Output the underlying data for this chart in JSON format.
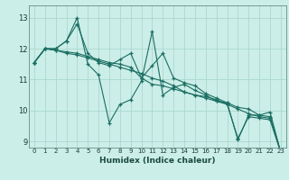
{
  "xlabel": "Humidex (Indice chaleur)",
  "bg_color": "#cceee8",
  "grid_color": "#aad8d0",
  "line_color": "#1a6e62",
  "xlim": [
    -0.5,
    23.5
  ],
  "ylim": [
    8.8,
    13.4
  ],
  "yticks": [
    9,
    10,
    11,
    12,
    13
  ],
  "xticks": [
    0,
    1,
    2,
    3,
    4,
    5,
    6,
    7,
    8,
    9,
    10,
    11,
    12,
    13,
    14,
    15,
    16,
    17,
    18,
    19,
    20,
    21,
    22,
    23
  ],
  "series": [
    [
      11.55,
      12.0,
      12.0,
      12.25,
      13.0,
      11.5,
      11.15,
      9.6,
      10.2,
      10.35,
      10.95,
      12.55,
      10.5,
      10.75,
      10.85,
      10.65,
      10.5,
      10.3,
      10.25,
      9.05,
      9.85,
      9.85,
      9.95,
      8.65
    ],
    [
      11.55,
      12.0,
      12.0,
      12.25,
      12.8,
      11.85,
      11.55,
      11.45,
      11.65,
      11.85,
      11.05,
      11.45,
      11.85,
      11.05,
      10.9,
      10.8,
      10.55,
      10.4,
      10.25,
      10.1,
      10.05,
      9.85,
      9.8,
      8.65
    ],
    [
      11.55,
      12.0,
      11.95,
      11.9,
      11.85,
      11.75,
      11.65,
      11.55,
      11.5,
      11.4,
      11.05,
      10.85,
      10.8,
      10.7,
      10.6,
      10.5,
      10.45,
      10.35,
      10.2,
      10.05,
      9.9,
      9.8,
      9.75,
      8.65
    ],
    [
      11.55,
      12.0,
      11.95,
      11.85,
      11.8,
      11.7,
      11.6,
      11.5,
      11.4,
      11.3,
      11.2,
      11.05,
      10.95,
      10.8,
      10.6,
      10.5,
      10.4,
      10.3,
      10.2,
      9.1,
      9.8,
      9.75,
      9.7,
      8.65
    ]
  ]
}
